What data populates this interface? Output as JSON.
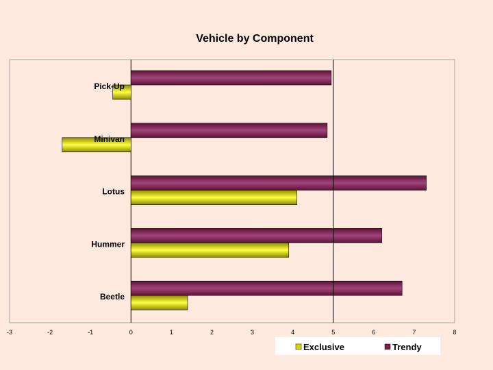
{
  "chart_data": {
    "type": "bar",
    "orientation": "horizontal",
    "title": "Vehicle by Component",
    "categories": [
      "Pick-Up",
      "Minivan",
      "Lotus",
      "Hummer",
      "Beetle"
    ],
    "series": [
      {
        "name": "Trendy",
        "values": [
          4.95,
          4.85,
          7.3,
          6.2,
          6.7
        ],
        "color": "#7a1f4a"
      },
      {
        "name": "Exclusive",
        "values": [
          -0.45,
          -1.7,
          4.1,
          3.9,
          1.4
        ],
        "color": "#d8d800"
      }
    ],
    "xlim": [
      -3,
      8
    ],
    "xticks": [
      "-3",
      "-2",
      "-1",
      "0",
      "1",
      "2",
      "3",
      "4",
      "5",
      "6",
      "7",
      "8"
    ],
    "reference_line": 5,
    "legend": {
      "position": "bottom-right",
      "items": [
        "Exclusive",
        "Trendy"
      ]
    },
    "grid": false
  }
}
